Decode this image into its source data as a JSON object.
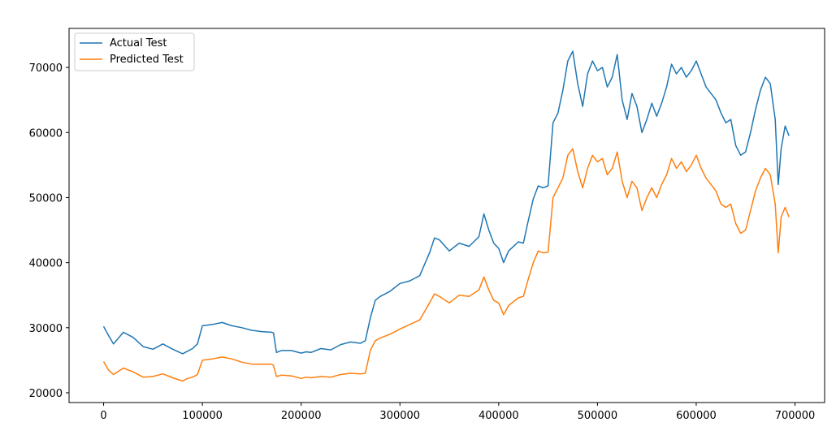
{
  "chart_data": {
    "type": "line",
    "title": "",
    "xlabel": "",
    "ylabel": "",
    "xlim": [
      -35000,
      730000
    ],
    "ylim": [
      18500,
      76000
    ],
    "xticks": [
      0,
      100000,
      200000,
      300000,
      400000,
      500000,
      600000,
      700000
    ],
    "xtick_labels": [
      "0",
      "100000",
      "200000",
      "300000",
      "400000",
      "500000",
      "600000",
      "700000"
    ],
    "yticks": [
      20000,
      30000,
      40000,
      50000,
      60000,
      70000
    ],
    "ytick_labels": [
      "20000",
      "30000",
      "40000",
      "50000",
      "60000",
      "70000"
    ],
    "grid": false,
    "legend": "upper-left",
    "x": [
      0,
      5000,
      10000,
      20000,
      30000,
      40000,
      50000,
      60000,
      70000,
      80000,
      85000,
      90000,
      95000,
      100000,
      110000,
      120000,
      130000,
      140000,
      150000,
      160000,
      170000,
      172000,
      175000,
      180000,
      190000,
      200000,
      205000,
      210000,
      220000,
      230000,
      240000,
      250000,
      260000,
      265000,
      270000,
      275000,
      280000,
      290000,
      300000,
      310000,
      320000,
      330000,
      335000,
      340000,
      350000,
      360000,
      370000,
      380000,
      385000,
      390000,
      395000,
      400000,
      405000,
      410000,
      420000,
      425000,
      430000,
      435000,
      440000,
      445000,
      450000,
      455000,
      460000,
      465000,
      470000,
      475000,
      480000,
      485000,
      490000,
      495000,
      500000,
      505000,
      510000,
      515000,
      520000,
      525000,
      530000,
      535000,
      540000,
      545000,
      550000,
      555000,
      560000,
      565000,
      570000,
      575000,
      580000,
      585000,
      590000,
      595000,
      600000,
      605000,
      610000,
      615000,
      620000,
      625000,
      630000,
      635000,
      640000,
      645000,
      650000,
      655000,
      660000,
      665000,
      670000,
      675000,
      680000,
      683000,
      686000,
      690000,
      694000
    ],
    "series": [
      {
        "name": "Actual Test",
        "color": "#1f77b4",
        "values": [
          30200,
          28800,
          27500,
          29300,
          28500,
          27100,
          26700,
          27500,
          26700,
          26000,
          26400,
          26800,
          27500,
          30300,
          30500,
          30800,
          30300,
          30000,
          29600,
          29400,
          29300,
          29200,
          26200,
          26500,
          26500,
          26100,
          26300,
          26200,
          26800,
          26600,
          27400,
          27800,
          27600,
          28000,
          31500,
          34200,
          34800,
          35600,
          36800,
          37200,
          38000,
          41500,
          43800,
          43500,
          41800,
          43000,
          42500,
          44000,
          47500,
          45000,
          43000,
          42200,
          40000,
          41800,
          43200,
          43000,
          46500,
          49800,
          51800,
          51500,
          51800,
          61500,
          63000,
          66500,
          71000,
          72500,
          67500,
          64000,
          69000,
          71000,
          69500,
          70000,
          67000,
          68500,
          72000,
          65000,
          62000,
          66000,
          64000,
          60000,
          62000,
          64500,
          62500,
          64500,
          67000,
          70500,
          69000,
          70000,
          68500,
          69500,
          71000,
          69000,
          67000,
          66000,
          65000,
          63000,
          61500,
          62000,
          58000,
          56500,
          57000,
          60000,
          63500,
          66500,
          68500,
          67500,
          62000,
          52000,
          57500,
          61000,
          59500
        ]
      },
      {
        "name": "Predicted Test",
        "color": "#ff7f0e",
        "values": [
          24800,
          23500,
          22800,
          23800,
          23200,
          22400,
          22500,
          22900,
          22300,
          21800,
          22200,
          22400,
          22800,
          25000,
          25200,
          25500,
          25200,
          24700,
          24400,
          24400,
          24400,
          24200,
          22500,
          22700,
          22600,
          22200,
          22400,
          22300,
          22500,
          22400,
          22800,
          23000,
          22900,
          23000,
          26500,
          28000,
          28400,
          29000,
          29800,
          30500,
          31200,
          33800,
          35200,
          34800,
          33800,
          35000,
          34800,
          35800,
          37800,
          35800,
          34200,
          33800,
          32000,
          33400,
          34600,
          34800,
          37500,
          40000,
          41800,
          41500,
          41600,
          50000,
          51500,
          53000,
          56500,
          57500,
          54000,
          51500,
          54500,
          56500,
          55500,
          56000,
          53500,
          54500,
          57000,
          52500,
          50000,
          52500,
          51500,
          48000,
          50000,
          51500,
          50000,
          52000,
          53500,
          56000,
          54500,
          55500,
          54000,
          55000,
          56500,
          54500,
          53000,
          52000,
          51000,
          49000,
          48500,
          49000,
          46000,
          44500,
          45000,
          48000,
          51000,
          53000,
          54500,
          53500,
          49000,
          41500,
          47000,
          48500,
          47000
        ]
      }
    ]
  }
}
